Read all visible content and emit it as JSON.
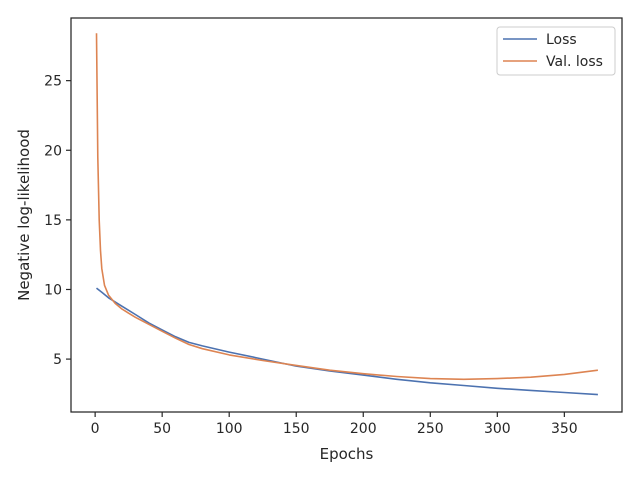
{
  "chart_data": {
    "type": "line",
    "title": "",
    "xlabel": "Epochs",
    "ylabel": "Negative log-likelihood",
    "xlim": [
      -18,
      393
    ],
    "ylim": [
      1.2,
      29.5
    ],
    "xticks": [
      0,
      50,
      100,
      150,
      200,
      250,
      300,
      350
    ],
    "yticks": [
      5,
      10,
      15,
      20,
      25
    ],
    "grid": false,
    "legend_position": "top-right",
    "series": [
      {
        "name": "Loss",
        "color": "#4c72b0",
        "x": [
          1,
          5,
          10,
          20,
          30,
          40,
          50,
          60,
          70,
          80,
          100,
          125,
          150,
          175,
          200,
          225,
          250,
          275,
          300,
          325,
          350,
          375
        ],
        "y": [
          10.1,
          9.8,
          9.4,
          8.8,
          8.2,
          7.6,
          7.1,
          6.6,
          6.2,
          5.95,
          5.5,
          5.0,
          4.5,
          4.15,
          3.85,
          3.55,
          3.3,
          3.1,
          2.9,
          2.75,
          2.6,
          2.45
        ]
      },
      {
        "name": "Val. loss",
        "color": "#dd8452",
        "x": [
          1,
          2,
          3,
          4,
          5,
          7,
          10,
          15,
          20,
          30,
          40,
          50,
          60,
          70,
          80,
          100,
          125,
          150,
          175,
          200,
          225,
          250,
          275,
          300,
          325,
          350,
          375
        ],
        "y": [
          28.4,
          19.5,
          15.0,
          12.8,
          11.5,
          10.3,
          9.6,
          9.0,
          8.6,
          8.0,
          7.5,
          7.0,
          6.5,
          6.05,
          5.75,
          5.3,
          4.9,
          4.55,
          4.2,
          3.95,
          3.75,
          3.6,
          3.55,
          3.6,
          3.7,
          3.9,
          4.2
        ]
      }
    ]
  }
}
